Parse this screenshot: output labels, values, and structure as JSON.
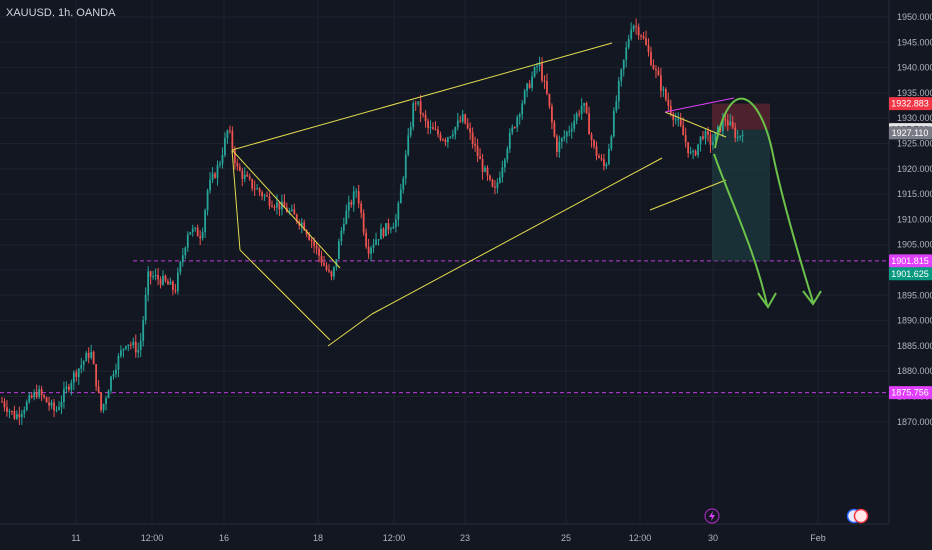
{
  "header": {
    "symbol_label": "XAUUSD, 1h, OANDA"
  },
  "colors": {
    "background": "#131722",
    "up": "#26a69a",
    "down": "#ef5350",
    "pattern": "#e3dd4f",
    "magenta": "#e040fb",
    "arrow": "#6cc24a",
    "target_zone": "#1c3a3e",
    "stop_zone": "#5b2630"
  },
  "chart_data": {
    "type": "candlestick",
    "ylim": [
      1867.5,
      1953
    ],
    "yticks": [
      "1950.000",
      "1945.000",
      "1940.000",
      "1935.000",
      "1930.000",
      "1925.000",
      "1920.000",
      "1915.000",
      "1910.000",
      "1905.000",
      "1900.000",
      "1895.000",
      "1890.000",
      "1885.000",
      "1880.000",
      "1875.000",
      "1870.000"
    ],
    "xticks": [
      "11",
      "12:00",
      "16",
      "18",
      "12:00",
      "23",
      "25",
      "12:00",
      "30",
      "Feb"
    ],
    "price_anchors": [
      [
        0.0,
        1874
      ],
      [
        0.015,
        1871
      ],
      [
        0.04,
        1876
      ],
      [
        0.06,
        1872
      ],
      [
        0.08,
        1879
      ],
      [
        0.1,
        1884
      ],
      [
        0.112,
        1872
      ],
      [
        0.125,
        1880
      ],
      [
        0.14,
        1886
      ],
      [
        0.155,
        1884
      ],
      [
        0.165,
        1899
      ],
      [
        0.18,
        1898
      ],
      [
        0.195,
        1896
      ],
      [
        0.21,
        1908
      ],
      [
        0.225,
        1907
      ],
      [
        0.232,
        1916
      ],
      [
        0.245,
        1921
      ],
      [
        0.255,
        1928
      ],
      [
        0.265,
        1920
      ],
      [
        0.28,
        1917
      ],
      [
        0.3,
        1914
      ],
      [
        0.32,
        1912
      ],
      [
        0.34,
        1909
      ],
      [
        0.36,
        1902
      ],
      [
        0.372,
        1898
      ],
      [
        0.385,
        1910
      ],
      [
        0.4,
        1916
      ],
      [
        0.412,
        1904
      ],
      [
        0.425,
        1907
      ],
      [
        0.445,
        1910
      ],
      [
        0.465,
        1934
      ],
      [
        0.48,
        1928
      ],
      [
        0.5,
        1926
      ],
      [
        0.52,
        1930
      ],
      [
        0.54,
        1921
      ],
      [
        0.555,
        1915
      ],
      [
        0.57,
        1925
      ],
      [
        0.59,
        1935
      ],
      [
        0.605,
        1941
      ],
      [
        0.615,
        1934
      ],
      [
        0.625,
        1924
      ],
      [
        0.64,
        1928
      ],
      [
        0.655,
        1933
      ],
      [
        0.667,
        1924
      ],
      [
        0.68,
        1920
      ],
      [
        0.695,
        1936
      ],
      [
        0.71,
        1949
      ],
      [
        0.72,
        1947
      ],
      [
        0.735,
        1940
      ],
      [
        0.75,
        1933
      ],
      [
        0.765,
        1928
      ],
      [
        0.778,
        1922
      ],
      [
        0.79,
        1927
      ],
      [
        0.8,
        1925
      ],
      [
        0.815,
        1930
      ],
      [
        0.83,
        1926
      ],
      [
        0.835,
        1927.8
      ]
    ],
    "price_badges": [
      {
        "label": "1932.883",
        "value": 1932.883,
        "color": "#f23645"
      },
      {
        "label": "1927.730",
        "value": 1927.73,
        "color": "#e6e6e6"
      },
      {
        "label": "1927.110",
        "value": 1927.11,
        "color": "#787b86"
      },
      {
        "label": "1901.815",
        "value": 1901.815,
        "color": "#e040fb"
      },
      {
        "label": "1901.625",
        "value": 1901.625,
        "color": "#089981"
      },
      {
        "label": "1875.756",
        "value": 1875.756,
        "color": "#e040fb"
      }
    ],
    "horizontal_lines": [
      1901.815,
      1875.756
    ]
  }
}
